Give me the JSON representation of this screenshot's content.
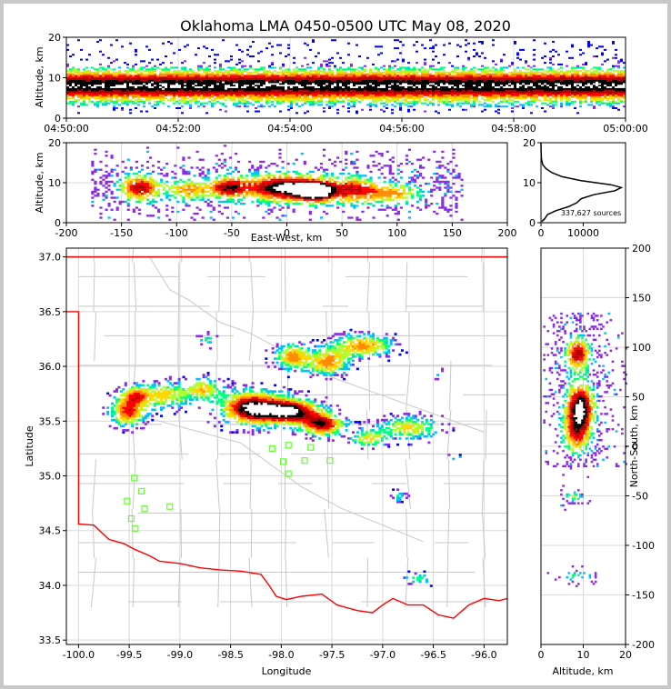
{
  "chart_data": {
    "type": "scatter",
    "title": "Oklahoma LMA 0450-0500 UTC May 08, 2020",
    "source_count_label": "337,627 sources",
    "colors": {
      "density_scale": [
        "#0000ff",
        "#8a2be2",
        "#00bfff",
        "#00ff7f",
        "#adff2f",
        "#ffd700",
        "#ff8c00",
        "#ff0000",
        "#b00000",
        "#000000",
        "#ffffff"
      ],
      "state_border": "#ff0000",
      "county_lines": "#c8c8c8",
      "stations": "#66ff33",
      "profile_line": "#000000"
    },
    "panels": {
      "time_height": {
        "xlabel": "",
        "ylabel": "Altitude, km",
        "xticks": [
          "04:50:00",
          "04:52:00",
          "04:54:00",
          "04:56:00",
          "04:58:00",
          "05:00:00"
        ],
        "yticks": [
          "0",
          "10",
          "20"
        ],
        "xlim": [
          "04:50:00",
          "05:00:00"
        ],
        "ylim": [
          0,
          20
        ],
        "band_km": [
          3,
          13
        ],
        "core_km": [
          6,
          10
        ]
      },
      "ew_height": {
        "xlabel": "East-West, km",
        "ylabel": "Altitude, km",
        "xticks": [
          "-200",
          "-150",
          "-100",
          "-50",
          "0",
          "50",
          "100",
          "150",
          "200"
        ],
        "yticks": [
          "0",
          "10",
          "20"
        ],
        "xlim": [
          -200,
          200
        ],
        "ylim": [
          0,
          20
        ],
        "clusters": [
          {
            "x": -135,
            "z": 9,
            "sx": 14,
            "sz": 2.5,
            "w": 0.8
          },
          {
            "x": -90,
            "z": 8.5,
            "sx": 14,
            "sz": 2,
            "w": 0.6
          },
          {
            "x": -55,
            "z": 9,
            "sx": 12,
            "sz": 2,
            "w": 0.7
          },
          {
            "x": -5,
            "z": 9,
            "sx": 26,
            "sz": 2.5,
            "w": 1.0
          },
          {
            "x": 25,
            "z": 8,
            "sx": 12,
            "sz": 1.8,
            "w": 0.8
          },
          {
            "x": 60,
            "z": 8.5,
            "sx": 18,
            "sz": 2.5,
            "w": 0.7
          },
          {
            "x": 100,
            "z": 7.5,
            "sx": 18,
            "sz": 2,
            "w": 0.5
          }
        ]
      },
      "alt_hist": {
        "xlabel": "",
        "ylabel": "",
        "xticks": [
          "0",
          "10000"
        ],
        "yticks": [
          "0",
          "10",
          "20"
        ],
        "xlim": [
          0,
          20000
        ],
        "ylim": [
          0,
          20
        ],
        "profile": [
          {
            "z": 0.3,
            "n": 200
          },
          {
            "z": 1,
            "n": 900
          },
          {
            "z": 2,
            "n": 1500
          },
          {
            "z": 3,
            "n": 3500
          },
          {
            "z": 4,
            "n": 6500
          },
          {
            "z": 5,
            "n": 8500
          },
          {
            "z": 6,
            "n": 9500
          },
          {
            "z": 7,
            "n": 12500
          },
          {
            "z": 8,
            "n": 17500
          },
          {
            "z": 8.8,
            "n": 19000
          },
          {
            "z": 9.5,
            "n": 16500
          },
          {
            "z": 10.5,
            "n": 9500
          },
          {
            "z": 11.5,
            "n": 5000
          },
          {
            "z": 12.5,
            "n": 2600
          },
          {
            "z": 13.5,
            "n": 1200
          },
          {
            "z": 14.5,
            "n": 400
          },
          {
            "z": 16,
            "n": 100
          },
          {
            "z": 18,
            "n": 30
          },
          {
            "z": 20,
            "n": 10
          }
        ]
      },
      "plan": {
        "xlabel": "Longitude",
        "ylabel": "Latitude",
        "xticks": [
          "-100.0",
          "-99.5",
          "-99.0",
          "-98.5",
          "-98.0",
          "-97.5",
          "-97.0",
          "-96.5",
          "-96.0"
        ],
        "yticks": [
          "33.5",
          "34.0",
          "34.5",
          "35.0",
          "35.5",
          "36.0",
          "36.5",
          "37.0"
        ],
        "xlim": [
          -100.12,
          -95.77
        ],
        "ylim": [
          33.46,
          37.08
        ],
        "stations": [
          {
            "lon": -99.45,
            "lat": 34.98
          },
          {
            "lon": -99.38,
            "lat": 34.86
          },
          {
            "lon": -99.52,
            "lat": 34.77
          },
          {
            "lon": -99.35,
            "lat": 34.7
          },
          {
            "lon": -99.48,
            "lat": 34.61
          },
          {
            "lon": -99.44,
            "lat": 34.52
          },
          {
            "lon": -99.1,
            "lat": 34.72
          },
          {
            "lon": -98.09,
            "lat": 35.25
          },
          {
            "lon": -97.93,
            "lat": 35.28
          },
          {
            "lon": -97.98,
            "lat": 35.13
          },
          {
            "lon": -97.93,
            "lat": 35.02
          },
          {
            "lon": -97.77,
            "lat": 35.14
          },
          {
            "lon": -97.71,
            "lat": 35.26
          },
          {
            "lon": -97.52,
            "lat": 35.14
          }
        ],
        "clusters": [
          {
            "lon": -99.52,
            "lat": 35.6,
            "slon": 0.12,
            "slat": 0.09,
            "w": 0.7
          },
          {
            "lon": -99.45,
            "lat": 35.75,
            "slon": 0.1,
            "slat": 0.06,
            "w": 0.5
          },
          {
            "lon": -99.15,
            "lat": 35.75,
            "slon": 0.16,
            "slat": 0.08,
            "w": 0.5
          },
          {
            "lon": -98.78,
            "lat": 35.8,
            "slon": 0.12,
            "slat": 0.07,
            "w": 0.5
          },
          {
            "lon": -98.3,
            "lat": 35.63,
            "slon": 0.2,
            "slat": 0.1,
            "w": 1.0
          },
          {
            "lon": -97.9,
            "lat": 35.6,
            "slon": 0.18,
            "slat": 0.08,
            "w": 0.9
          },
          {
            "lon": -97.6,
            "lat": 35.48,
            "slon": 0.14,
            "slat": 0.07,
            "w": 0.8
          },
          {
            "lon": -97.15,
            "lat": 35.35,
            "slon": 0.12,
            "slat": 0.05,
            "w": 0.5
          },
          {
            "lon": -97.9,
            "lat": 36.1,
            "slon": 0.12,
            "slat": 0.08,
            "w": 0.6
          },
          {
            "lon": -97.55,
            "lat": 36.05,
            "slon": 0.14,
            "slat": 0.08,
            "w": 0.6
          },
          {
            "lon": -97.2,
            "lat": 36.2,
            "slon": 0.2,
            "slat": 0.07,
            "w": 0.6
          },
          {
            "lon": -96.75,
            "lat": 35.45,
            "slon": 0.2,
            "slat": 0.07,
            "w": 0.5
          },
          {
            "lon": -98.75,
            "lat": 36.25,
            "slon": 0.06,
            "slat": 0.04,
            "w": 0.3
          },
          {
            "lon": -96.85,
            "lat": 34.83,
            "slon": 0.05,
            "slat": 0.04,
            "w": 0.3
          },
          {
            "lon": -96.65,
            "lat": 34.07,
            "slon": 0.1,
            "slat": 0.04,
            "w": 0.3
          },
          {
            "lon": -96.3,
            "lat": 35.18,
            "slon": 0.07,
            "slat": 0.02,
            "w": 0.2
          },
          {
            "lon": -96.45,
            "lat": 35.94,
            "slon": 0.05,
            "slat": 0.03,
            "w": 0.2
          }
        ]
      },
      "ns_height": {
        "xlabel": "Altitude, km",
        "ylabel": "North-South, km",
        "xticks": [
          "0",
          "10",
          "20"
        ],
        "yticks": [
          "-200",
          "-150",
          "-100",
          "-50",
          "0",
          "50",
          "100",
          "150",
          "200"
        ],
        "xlim": [
          0,
          20
        ],
        "ylim": [
          -200,
          200
        ],
        "clusters": [
          {
            "y": 40,
            "z": 9,
            "sy": 18,
            "sz": 2.5,
            "w": 1.0
          },
          {
            "y": 95,
            "z": 8.5,
            "sy": 12,
            "sz": 2.2,
            "w": 0.8
          },
          {
            "y": 10,
            "z": 8,
            "sy": 14,
            "sz": 2.5,
            "w": 0.5
          },
          {
            "y": -50,
            "z": 7.5,
            "sy": 4,
            "sz": 2,
            "w": 0.35
          },
          {
            "y": -130,
            "z": 8,
            "sy": 4,
            "sz": 3,
            "w": 0.3
          }
        ]
      }
    }
  }
}
